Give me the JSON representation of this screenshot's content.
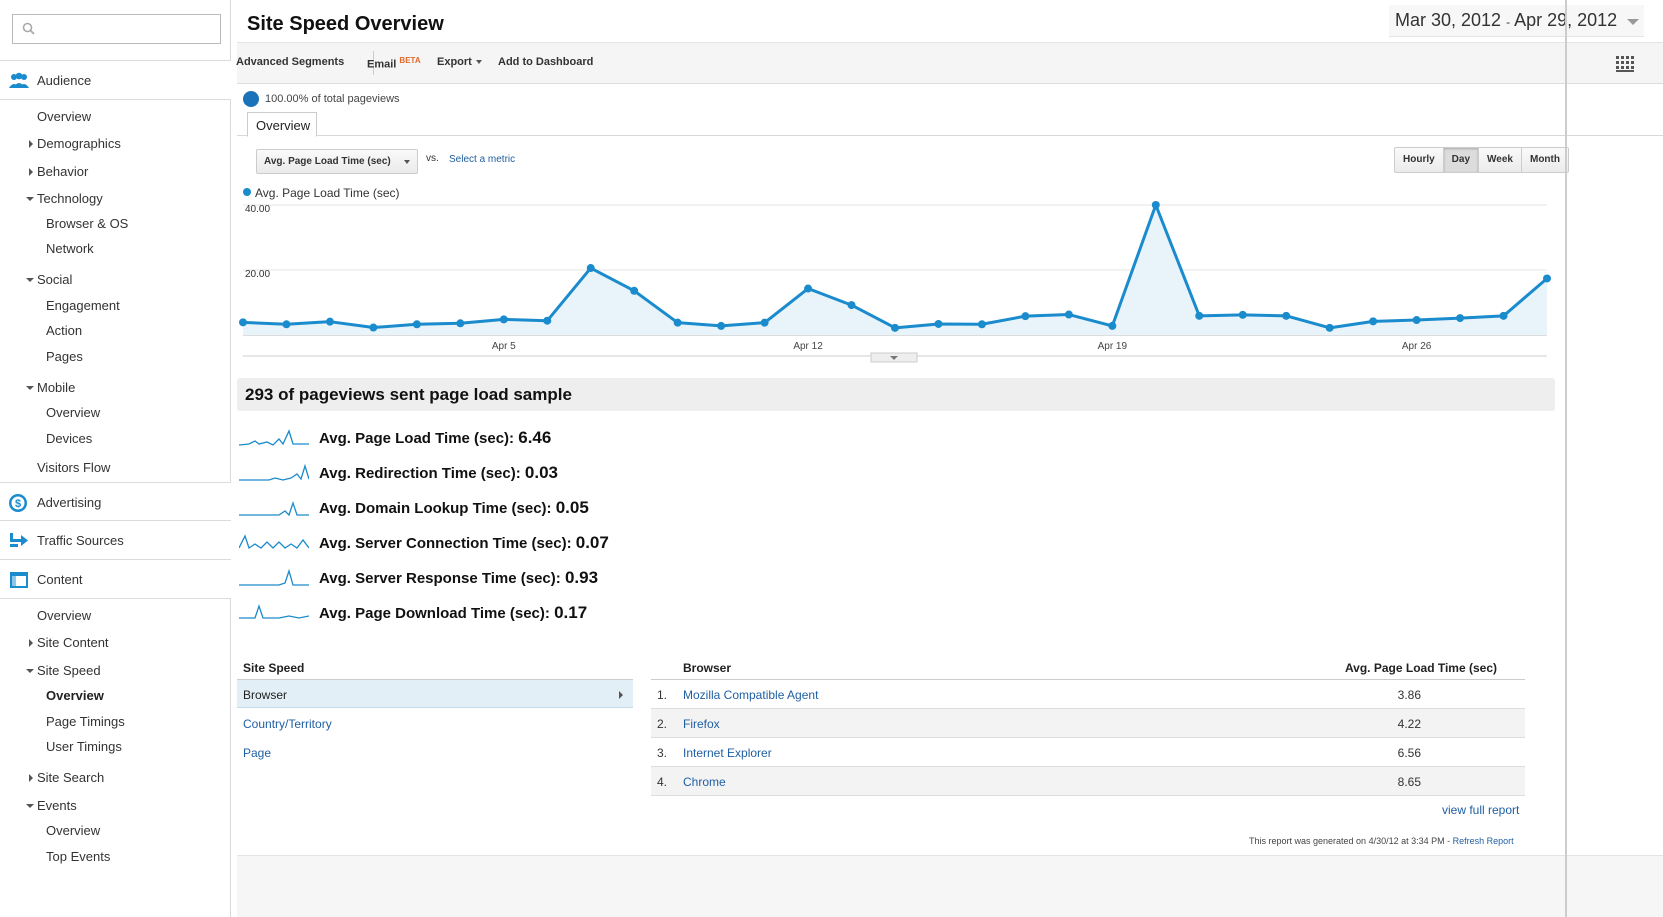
{
  "sidebar": {
    "search_placeholder": "",
    "audience_label": "Audience",
    "audience_items": {
      "overview": "Overview",
      "demographics": "Demographics",
      "behavior": "Behavior",
      "technology": "Technology",
      "browser_os": "Browser & OS",
      "network": "Network",
      "social": "Social",
      "engagement": "Engagement",
      "action": "Action",
      "pages": "Pages",
      "mobile": "Mobile",
      "mobile_overview": "Overview",
      "devices": "Devices",
      "visitors_flow": "Visitors Flow"
    },
    "advertising_label": "Advertising",
    "traffic_label": "Traffic Sources",
    "content_label": "Content",
    "content_items": {
      "overview": "Overview",
      "site_content": "Site Content",
      "site_speed": "Site Speed",
      "speed_overview": "Overview",
      "page_timings": "Page Timings",
      "user_timings": "User Timings",
      "site_search": "Site Search",
      "events": "Events",
      "events_overview": "Overview",
      "top_events": "Top Events"
    },
    "accent_color": "#1a8bcc"
  },
  "header": {
    "title": "Site Speed Overview",
    "date_start": "Mar 30, 2012",
    "date_sep": "-",
    "date_end": "Apr 29, 2012"
  },
  "toolbar": {
    "advanced_segments": "Advanced Segments",
    "email": "Email",
    "email_badge": "BETA",
    "export": "Export",
    "add_to_dashboard": "Add to Dashboard"
  },
  "segment": {
    "text": "100.00% of total pageviews"
  },
  "tabs": {
    "overview": "Overview"
  },
  "controls": {
    "metric": "Avg. Page Load Time (sec)",
    "vs": "vs.",
    "select_metric": "Select a metric",
    "granularity": [
      "Hourly",
      "Day",
      "Week",
      "Month"
    ],
    "active_granularity": "Day"
  },
  "chart_data": {
    "type": "area",
    "legend": "Avg. Page Load Time (sec)",
    "series_color": "#1a8bcc",
    "y_ticks": [
      "40.00",
      "20.00"
    ],
    "ylim": [
      0,
      40
    ],
    "x_tick_labels": [
      "Apr 5",
      "Apr 12",
      "Apr 19",
      "Apr 26"
    ],
    "x_tick_index": [
      6,
      13,
      20,
      27
    ],
    "x": [
      "Mar 30",
      "Mar 31",
      "Apr 1",
      "Apr 2",
      "Apr 3",
      "Apr 4",
      "Apr 5",
      "Apr 6",
      "Apr 7",
      "Apr 8",
      "Apr 9",
      "Apr 10",
      "Apr 11",
      "Apr 12",
      "Apr 13",
      "Apr 14",
      "Apr 15",
      "Apr 16",
      "Apr 17",
      "Apr 18",
      "Apr 19",
      "Apr 20",
      "Apr 21",
      "Apr 22",
      "Apr 23",
      "Apr 24",
      "Apr 25",
      "Apr 26",
      "Apr 27",
      "Apr 28",
      "Apr 29"
    ],
    "values": [
      3.9,
      3.3,
      4.1,
      2.3,
      3.3,
      3.6,
      4.8,
      4.4,
      20.6,
      13.6,
      3.8,
      2.8,
      3.8,
      14.3,
      9.2,
      2.2,
      3.4,
      3.3,
      5.8,
      6.3,
      2.8,
      40.0,
      5.9,
      6.2,
      5.9,
      2.2,
      4.2,
      4.6,
      5.2,
      5.9,
      17.4
    ]
  },
  "summary": {
    "sample_text": "293 of pageviews sent page load sample",
    "metrics": [
      {
        "label": "Avg. Page Load Time (sec):",
        "value": "6.46"
      },
      {
        "label": "Avg. Redirection Time (sec):",
        "value": "0.03"
      },
      {
        "label": "Avg. Domain Lookup Time (sec):",
        "value": "0.05"
      },
      {
        "label": "Avg. Server Connection Time (sec):",
        "value": "0.07"
      },
      {
        "label": "Avg. Server Response Time (sec):",
        "value": "0.93"
      },
      {
        "label": "Avg. Page Download Time (sec):",
        "value": "0.17"
      }
    ]
  },
  "dimensions": {
    "header": "Site Speed",
    "items": [
      "Browser",
      "Country/Territory",
      "Page"
    ]
  },
  "table": {
    "col_dimension": "Browser",
    "col_metric": "Avg. Page Load Time (sec)",
    "rows": [
      {
        "num": "1.",
        "name": "Mozilla Compatible Agent",
        "value": "3.86"
      },
      {
        "num": "2.",
        "name": "Firefox",
        "value": "4.22"
      },
      {
        "num": "3.",
        "name": "Internet Explorer",
        "value": "6.56"
      },
      {
        "num": "4.",
        "name": "Chrome",
        "value": "8.65"
      }
    ],
    "view_full": "view full report"
  },
  "footer": {
    "generated": "This report was generated on 4/30/12 at 3:34 PM -",
    "refresh": "Refresh Report"
  }
}
